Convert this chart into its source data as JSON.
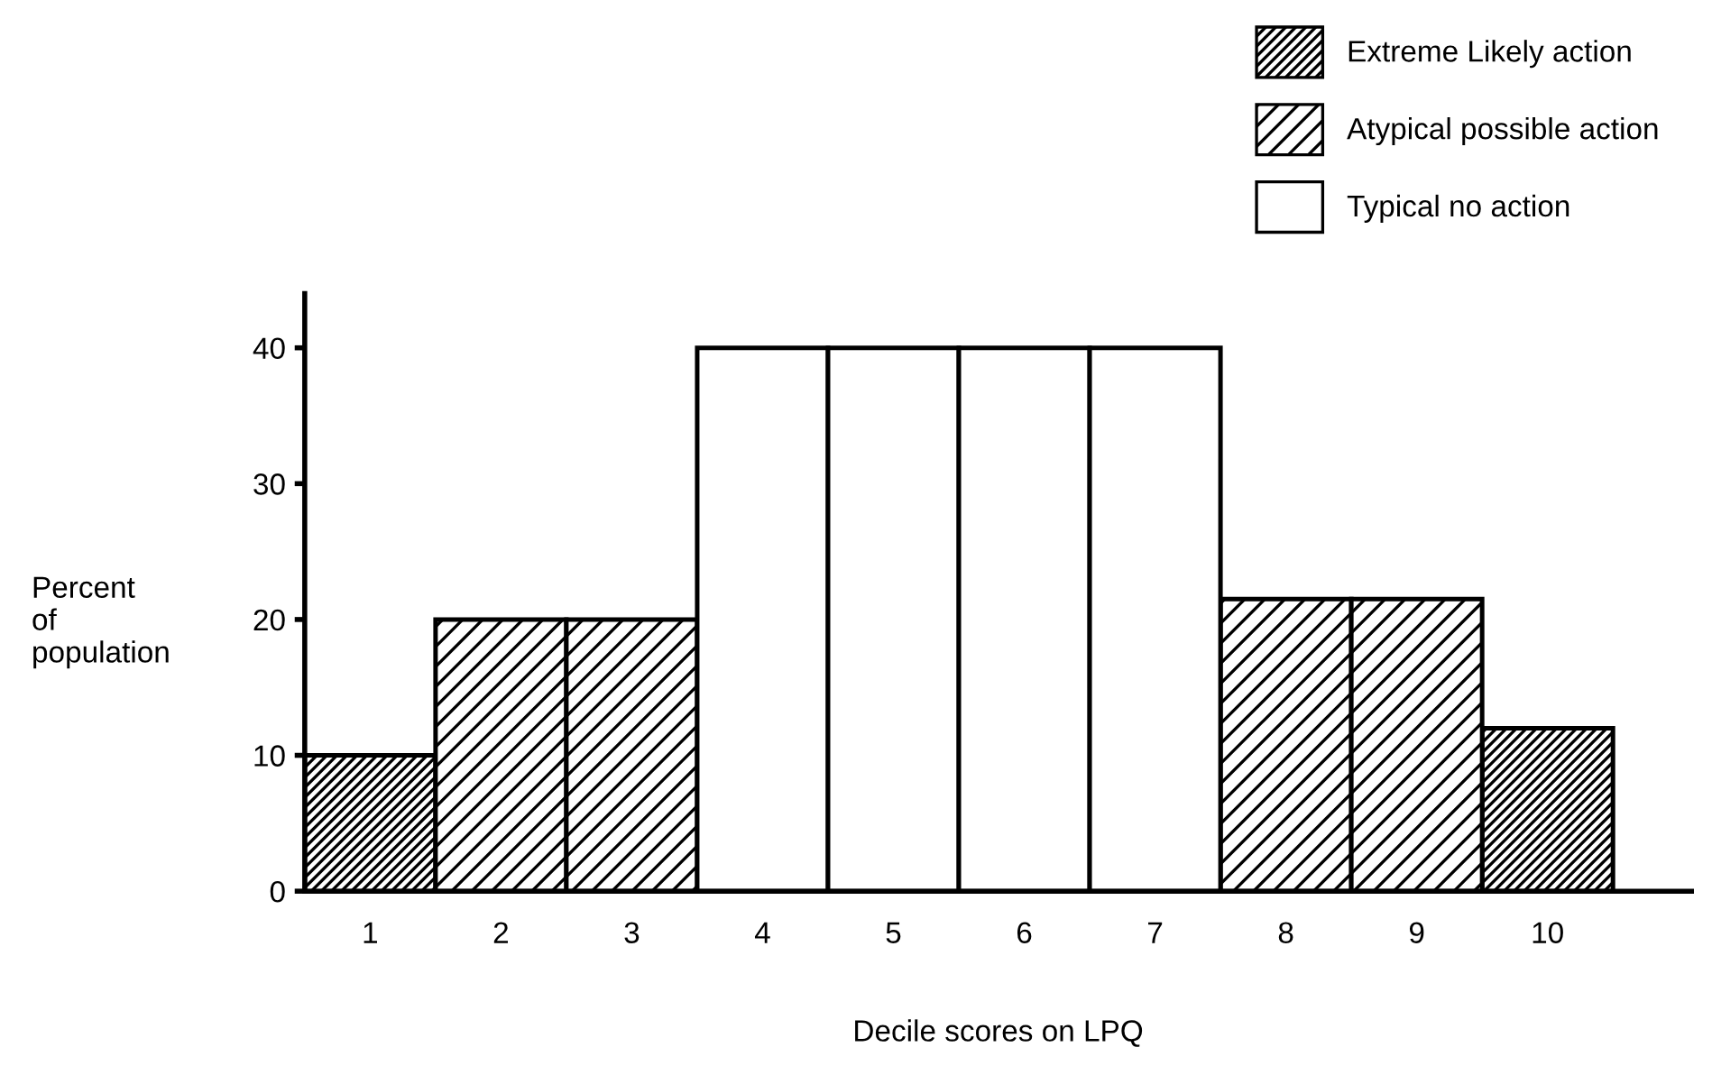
{
  "chart_data": {
    "type": "bar",
    "xlabel": "Decile scores on LPQ",
    "ylabel": "Percent\nof\npopulation",
    "categories": [
      "1",
      "2",
      "3",
      "4",
      "5",
      "6",
      "7",
      "8",
      "9",
      "10"
    ],
    "series": [
      {
        "name": "Extreme Likely action",
        "color": "#000000",
        "values": [
          10,
          null,
          null,
          null,
          null,
          null,
          null,
          null,
          null,
          12
        ]
      },
      {
        "name": "Atypical possible action",
        "color": "#000000",
        "values": [
          null,
          20,
          20,
          null,
          null,
          null,
          null,
          21.5,
          21.5,
          null
        ]
      },
      {
        "name": "Typical no action",
        "color": "#ffffff",
        "values": [
          null,
          null,
          null,
          40,
          40,
          40,
          40,
          null,
          null,
          null
        ]
      }
    ],
    "ylim": [
      0,
      44
    ],
    "yticks": [
      0,
      10,
      20,
      30,
      40
    ],
    "grid": false,
    "legend": "top right"
  }
}
